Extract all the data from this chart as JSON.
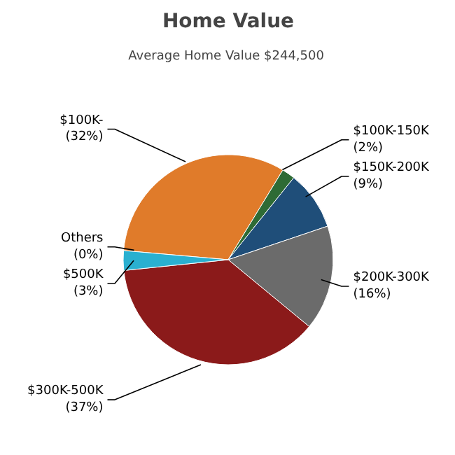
{
  "chart_data": {
    "type": "pie",
    "title": "Home Value",
    "subtitle": "Average Home Value  $244,500",
    "categories": [
      "$100K-",
      "$100K-150K",
      "$150K-200K",
      "$200K-300K",
      "$300K-500K",
      "$500K",
      "Others"
    ],
    "values": [
      32,
      2,
      9,
      16,
      37,
      3,
      0
    ],
    "value_labels": [
      "(32%)",
      "(2%)",
      "(9%)",
      "(16%)",
      "(37%)",
      "(3%)",
      "(0%)"
    ],
    "colors": [
      "#e07b2a",
      "#2e6b35",
      "#1f4e79",
      "#6b6b6b",
      "#8b1a1a",
      "#2ab0d0",
      "#9a9a9a"
    ]
  }
}
